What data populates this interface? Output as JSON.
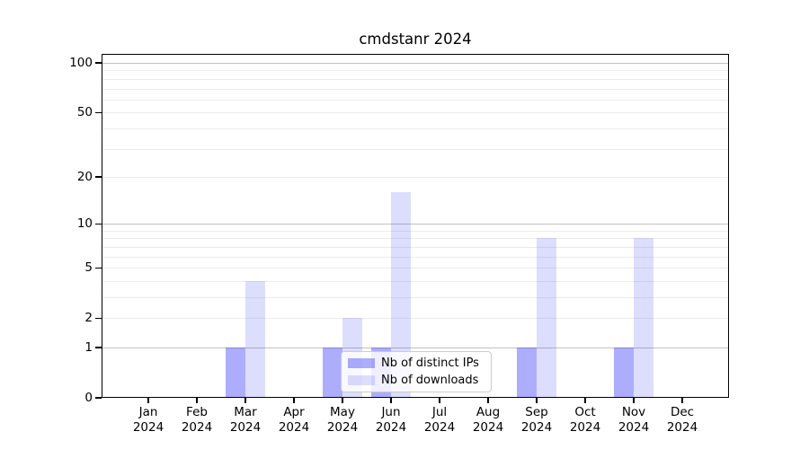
{
  "chart_data": {
    "type": "bar",
    "title": "cmdstanr 2024",
    "months": [
      "Jan",
      "Feb",
      "Mar",
      "Apr",
      "May",
      "Jun",
      "Jul",
      "Aug",
      "Sep",
      "Oct",
      "Nov",
      "Dec"
    ],
    "year": "2024",
    "series": [
      {
        "name": "Nb of distinct IPs",
        "color": "rgba(20,20,248,0.35)",
        "values": [
          0,
          0,
          1,
          0,
          1,
          1,
          0,
          0,
          1,
          0,
          1,
          0
        ]
      },
      {
        "name": "Nb of downloads",
        "color": "rgba(20,20,248,0.145)",
        "values": [
          0,
          0,
          4,
          0,
          2,
          16,
          0,
          0,
          8,
          0,
          8,
          0
        ]
      }
    ],
    "yscale": "log1p",
    "ylim": [
      0,
      113
    ],
    "ytick_labels": [
      0,
      1,
      2,
      5,
      10,
      20,
      50,
      100
    ],
    "gridlines_major": [
      1,
      10,
      100
    ],
    "gridlines_minor": [
      2,
      3,
      4,
      5,
      6,
      7,
      8,
      9,
      20,
      30,
      40,
      50,
      60,
      70,
      80,
      90
    ],
    "legend_position": "lower center",
    "colors": {
      "grid_major": "#c2c2c2",
      "grid_minor": "#ebebeb",
      "axis": "#000000",
      "background": "#ffffff"
    }
  }
}
